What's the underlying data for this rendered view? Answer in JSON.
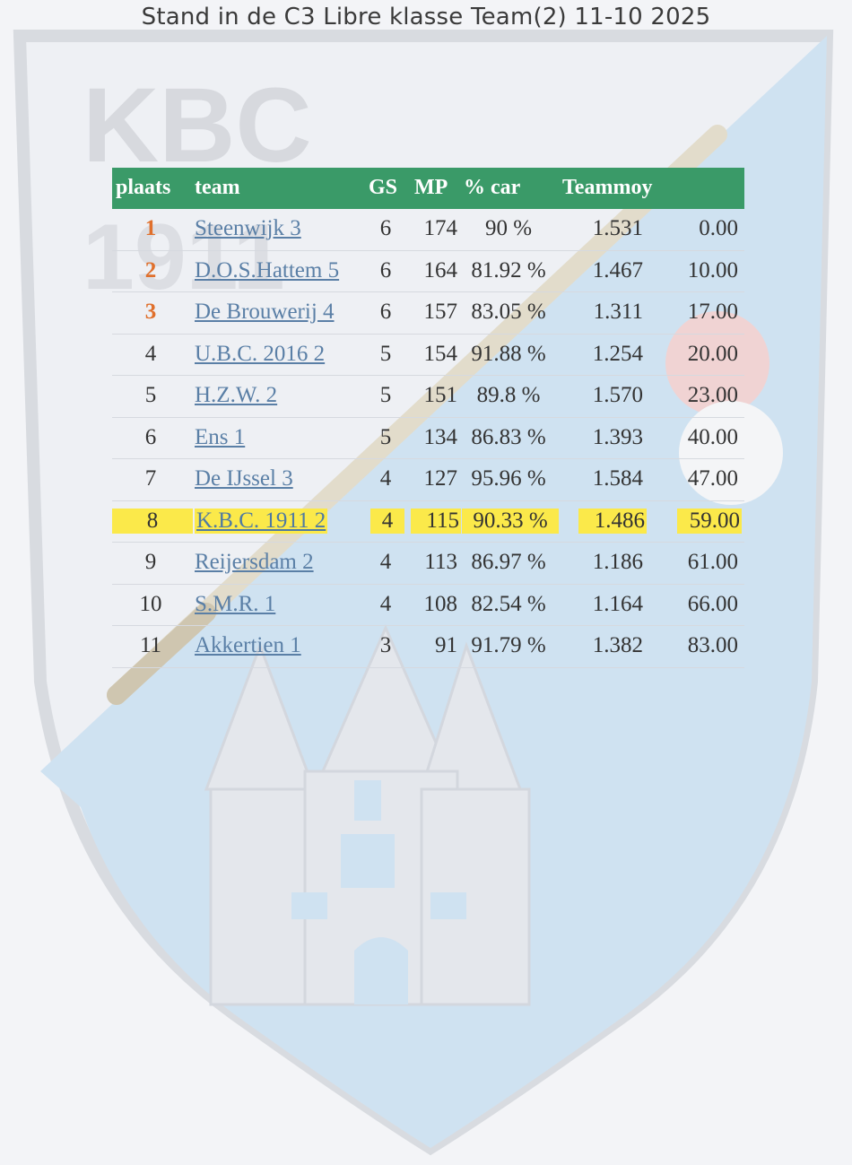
{
  "title": "Stand in de C3 Libre klasse Team(2) 11-10 2025",
  "watermark": {
    "line1": "KBC",
    "line2": "1911"
  },
  "colors": {
    "header": "#3a9a68",
    "top3": "#e0702c",
    "highlight": "#fbe94a",
    "link": "#5a7fa6"
  },
  "table": {
    "headers": {
      "plaats": "plaats",
      "team": "team",
      "gs": "GS",
      "mp": "MP",
      "car": "% car",
      "teammoy": "Teammoy"
    },
    "rows": [
      {
        "plaats": "1",
        "team": "Steenwijk 3",
        "gs": "6",
        "mp": "174",
        "car": "90 %",
        "teammoy": "1.531",
        "points": "0.00"
      },
      {
        "plaats": "2",
        "team": "D.O.S.Hattem 5",
        "gs": "6",
        "mp": "164",
        "car": "81.92 %",
        "teammoy": "1.467",
        "points": "10.00"
      },
      {
        "plaats": "3",
        "team": "De Brouwerij 4",
        "gs": "6",
        "mp": "157",
        "car": "83.05 %",
        "teammoy": "1.311",
        "points": "17.00"
      },
      {
        "plaats": "4",
        "team": "U.B.C. 2016 2",
        "gs": "5",
        "mp": "154",
        "car": "91.88 %",
        "teammoy": "1.254",
        "points": "20.00"
      },
      {
        "plaats": "5",
        "team": "H.Z.W. 2",
        "gs": "5",
        "mp": "151",
        "car": "89.8 %",
        "teammoy": "1.570",
        "points": "23.00"
      },
      {
        "plaats": "6",
        "team": "Ens 1",
        "gs": "5",
        "mp": "134",
        "car": "86.83 %",
        "teammoy": "1.393",
        "points": "40.00"
      },
      {
        "plaats": "7",
        "team": "De IJssel 3",
        "gs": "4",
        "mp": "127",
        "car": "95.96 %",
        "teammoy": "1.584",
        "points": "47.00"
      },
      {
        "plaats": "8",
        "team": "K.B.C. 1911 2",
        "gs": "4",
        "mp": "115",
        "car": "90.33 %",
        "teammoy": "1.486",
        "points": "59.00"
      },
      {
        "plaats": "9",
        "team": "Reijersdam 2",
        "gs": "4",
        "mp": "113",
        "car": "86.97 %",
        "teammoy": "1.186",
        "points": "61.00"
      },
      {
        "plaats": "10",
        "team": "S.M.R. 1",
        "gs": "4",
        "mp": "108",
        "car": "82.54 %",
        "teammoy": "1.164",
        "points": "66.00"
      },
      {
        "plaats": "11",
        "team": "Akkertien 1",
        "gs": "3",
        "mp": "91",
        "car": "91.79 %",
        "teammoy": "1.382",
        "points": "83.00"
      }
    ]
  }
}
